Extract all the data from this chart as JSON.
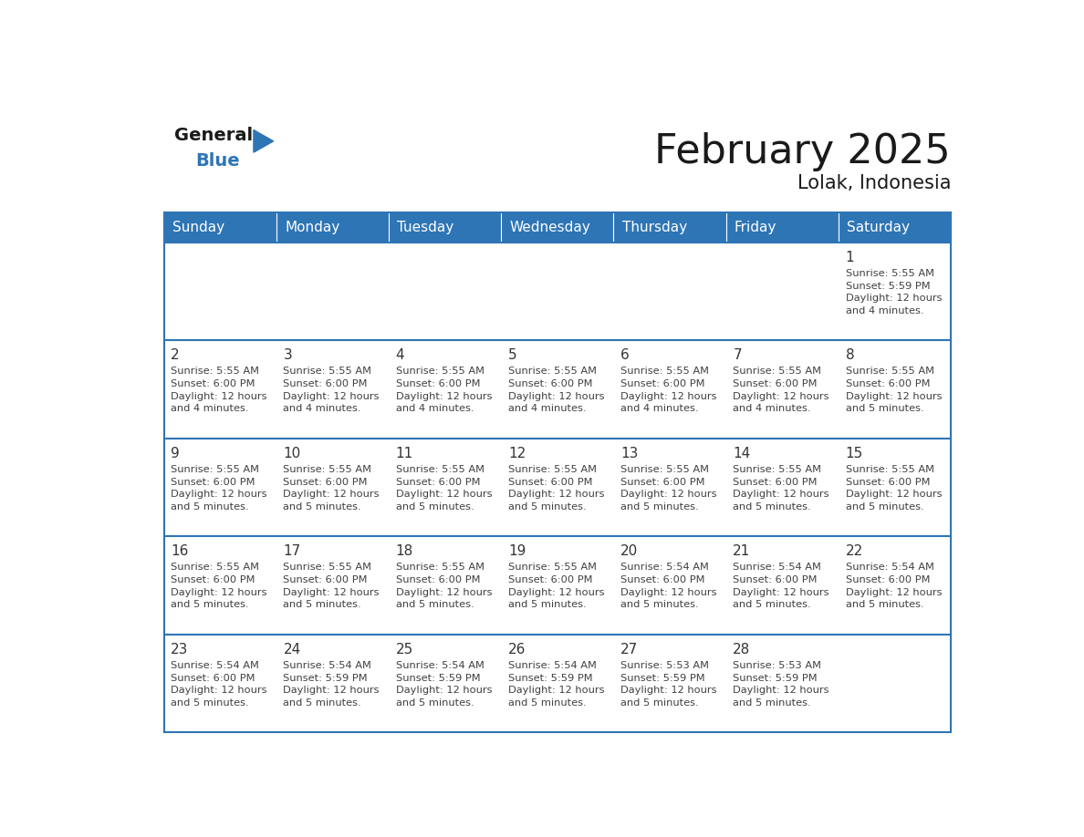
{
  "title": "February 2025",
  "subtitle": "Lolak, Indonesia",
  "header_bg_color": "#2E75B6",
  "header_text_color": "#FFFFFF",
  "cell_bg_even": "#FFFFFF",
  "cell_bg_odd": "#FFFFFF",
  "border_color": "#2E75B6",
  "row_divider_color": "#2E75B6",
  "day_num_color": "#333333",
  "cell_text_color": "#404040",
  "days_of_week": [
    "Sunday",
    "Monday",
    "Tuesday",
    "Wednesday",
    "Thursday",
    "Friday",
    "Saturday"
  ],
  "weeks": [
    [
      {
        "day": 0,
        "info": ""
      },
      {
        "day": 0,
        "info": ""
      },
      {
        "day": 0,
        "info": ""
      },
      {
        "day": 0,
        "info": ""
      },
      {
        "day": 0,
        "info": ""
      },
      {
        "day": 0,
        "info": ""
      },
      {
        "day": 1,
        "info": "Sunrise: 5:55 AM\nSunset: 5:59 PM\nDaylight: 12 hours\nand 4 minutes."
      }
    ],
    [
      {
        "day": 2,
        "info": "Sunrise: 5:55 AM\nSunset: 6:00 PM\nDaylight: 12 hours\nand 4 minutes."
      },
      {
        "day": 3,
        "info": "Sunrise: 5:55 AM\nSunset: 6:00 PM\nDaylight: 12 hours\nand 4 minutes."
      },
      {
        "day": 4,
        "info": "Sunrise: 5:55 AM\nSunset: 6:00 PM\nDaylight: 12 hours\nand 4 minutes."
      },
      {
        "day": 5,
        "info": "Sunrise: 5:55 AM\nSunset: 6:00 PM\nDaylight: 12 hours\nand 4 minutes."
      },
      {
        "day": 6,
        "info": "Sunrise: 5:55 AM\nSunset: 6:00 PM\nDaylight: 12 hours\nand 4 minutes."
      },
      {
        "day": 7,
        "info": "Sunrise: 5:55 AM\nSunset: 6:00 PM\nDaylight: 12 hours\nand 4 minutes."
      },
      {
        "day": 8,
        "info": "Sunrise: 5:55 AM\nSunset: 6:00 PM\nDaylight: 12 hours\nand 5 minutes."
      }
    ],
    [
      {
        "day": 9,
        "info": "Sunrise: 5:55 AM\nSunset: 6:00 PM\nDaylight: 12 hours\nand 5 minutes."
      },
      {
        "day": 10,
        "info": "Sunrise: 5:55 AM\nSunset: 6:00 PM\nDaylight: 12 hours\nand 5 minutes."
      },
      {
        "day": 11,
        "info": "Sunrise: 5:55 AM\nSunset: 6:00 PM\nDaylight: 12 hours\nand 5 minutes."
      },
      {
        "day": 12,
        "info": "Sunrise: 5:55 AM\nSunset: 6:00 PM\nDaylight: 12 hours\nand 5 minutes."
      },
      {
        "day": 13,
        "info": "Sunrise: 5:55 AM\nSunset: 6:00 PM\nDaylight: 12 hours\nand 5 minutes."
      },
      {
        "day": 14,
        "info": "Sunrise: 5:55 AM\nSunset: 6:00 PM\nDaylight: 12 hours\nand 5 minutes."
      },
      {
        "day": 15,
        "info": "Sunrise: 5:55 AM\nSunset: 6:00 PM\nDaylight: 12 hours\nand 5 minutes."
      }
    ],
    [
      {
        "day": 16,
        "info": "Sunrise: 5:55 AM\nSunset: 6:00 PM\nDaylight: 12 hours\nand 5 minutes."
      },
      {
        "day": 17,
        "info": "Sunrise: 5:55 AM\nSunset: 6:00 PM\nDaylight: 12 hours\nand 5 minutes."
      },
      {
        "day": 18,
        "info": "Sunrise: 5:55 AM\nSunset: 6:00 PM\nDaylight: 12 hours\nand 5 minutes."
      },
      {
        "day": 19,
        "info": "Sunrise: 5:55 AM\nSunset: 6:00 PM\nDaylight: 12 hours\nand 5 minutes."
      },
      {
        "day": 20,
        "info": "Sunrise: 5:54 AM\nSunset: 6:00 PM\nDaylight: 12 hours\nand 5 minutes."
      },
      {
        "day": 21,
        "info": "Sunrise: 5:54 AM\nSunset: 6:00 PM\nDaylight: 12 hours\nand 5 minutes."
      },
      {
        "day": 22,
        "info": "Sunrise: 5:54 AM\nSunset: 6:00 PM\nDaylight: 12 hours\nand 5 minutes."
      }
    ],
    [
      {
        "day": 23,
        "info": "Sunrise: 5:54 AM\nSunset: 6:00 PM\nDaylight: 12 hours\nand 5 minutes."
      },
      {
        "day": 24,
        "info": "Sunrise: 5:54 AM\nSunset: 5:59 PM\nDaylight: 12 hours\nand 5 minutes."
      },
      {
        "day": 25,
        "info": "Sunrise: 5:54 AM\nSunset: 5:59 PM\nDaylight: 12 hours\nand 5 minutes."
      },
      {
        "day": 26,
        "info": "Sunrise: 5:54 AM\nSunset: 5:59 PM\nDaylight: 12 hours\nand 5 minutes."
      },
      {
        "day": 27,
        "info": "Sunrise: 5:53 AM\nSunset: 5:59 PM\nDaylight: 12 hours\nand 5 minutes."
      },
      {
        "day": 28,
        "info": "Sunrise: 5:53 AM\nSunset: 5:59 PM\nDaylight: 12 hours\nand 5 minutes."
      },
      {
        "day": 0,
        "info": ""
      }
    ]
  ],
  "logo_general_color": "#1a1a1a",
  "logo_blue_color": "#2E75B6",
  "logo_triangle_color": "#2E75B6",
  "title_color": "#1a1a1a",
  "subtitle_color": "#1a1a1a"
}
